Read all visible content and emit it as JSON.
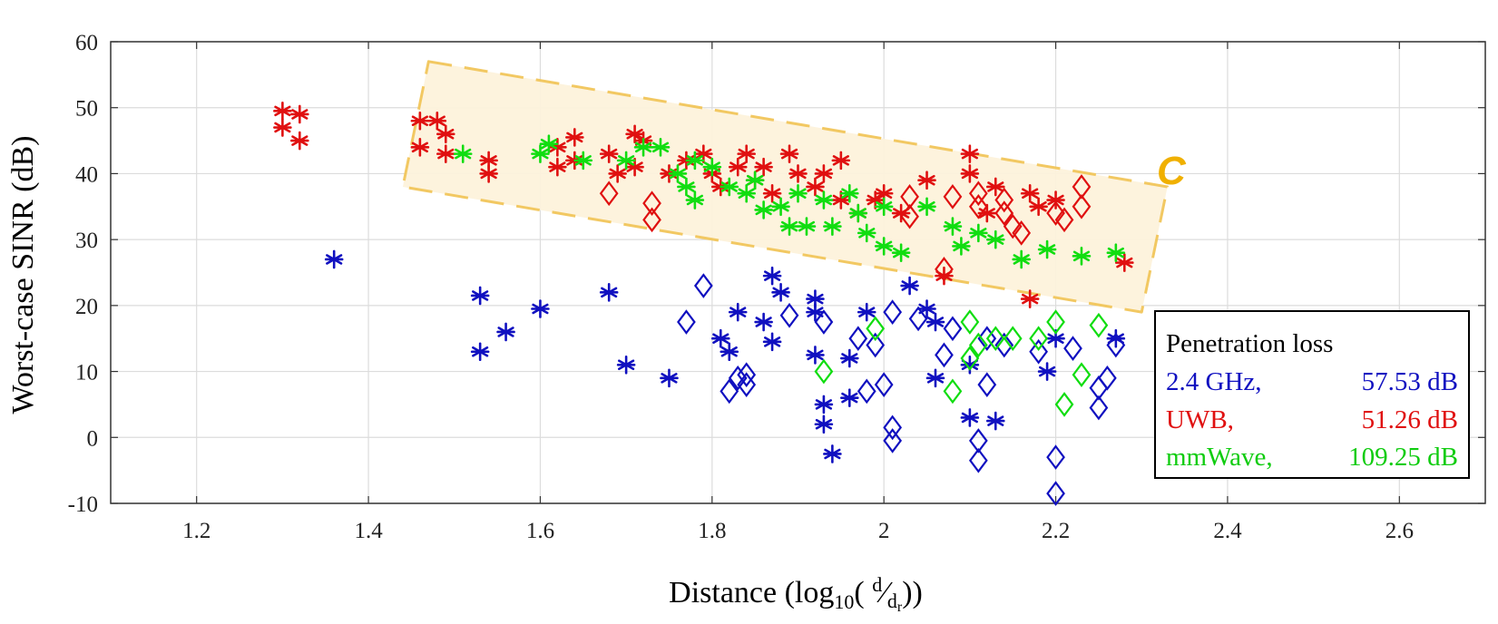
{
  "chart_data": {
    "type": "scatter",
    "xlabel": "Distance (log10( d/dr))",
    "xlabel_parts": {
      "prefix": "Distance (log",
      "sub": "10",
      "open": "( ",
      "num": "d",
      "den": "d",
      "den_sub": "r",
      "close": "))"
    },
    "ylabel": "Worst-case SINR (dB)",
    "xlim": [
      1.1,
      2.7
    ],
    "ylim": [
      -10,
      60
    ],
    "xticks": [
      1.2,
      1.4,
      1.6,
      1.8,
      2,
      2.2,
      2.4,
      2.6
    ],
    "xtick_labels": [
      "1.2",
      "1.4",
      "1.6",
      "1.8",
      "2",
      "2.2",
      "2.4",
      "2.6"
    ],
    "yticks": [
      -10,
      0,
      10,
      20,
      30,
      40,
      50,
      60
    ],
    "ytick_labels": [
      "-10",
      "0",
      "10",
      "20",
      "30",
      "40",
      "50",
      "60"
    ],
    "grid": true,
    "legend": {
      "placement": "bottom-right",
      "title": "Penetration loss",
      "entries": [
        {
          "label": "2.4 GHz,",
          "value": "57.53 dB",
          "color": "#1010c0"
        },
        {
          "label": "UWB,",
          "value": "51.26 dB",
          "color": "#e01010"
        },
        {
          "label": "mmWave,",
          "value": "109.25 dB",
          "color": "#10dd10"
        }
      ]
    },
    "region_annotation": {
      "label": "C",
      "fill": "#fdf3dc",
      "stroke": "#f2c65a",
      "corners_data": [
        [
          1.47,
          57
        ],
        [
          2.33,
          38
        ],
        [
          2.3,
          19
        ],
        [
          1.44,
          38
        ]
      ]
    },
    "series": [
      {
        "name": "2.4 GHz",
        "color": "#1010c0",
        "points": [
          {
            "x": 1.36,
            "y": 27,
            "m": "star"
          },
          {
            "x": 1.53,
            "y": 21.5,
            "m": "star"
          },
          {
            "x": 1.53,
            "y": 13,
            "m": "star"
          },
          {
            "x": 1.56,
            "y": 16,
            "m": "star"
          },
          {
            "x": 1.6,
            "y": 19.5,
            "m": "star"
          },
          {
            "x": 1.68,
            "y": 22,
            "m": "star"
          },
          {
            "x": 1.7,
            "y": 11,
            "m": "star"
          },
          {
            "x": 1.75,
            "y": 9,
            "m": "star"
          },
          {
            "x": 1.77,
            "y": 17.5,
            "m": "diamond"
          },
          {
            "x": 1.79,
            "y": 23,
            "m": "diamond"
          },
          {
            "x": 1.81,
            "y": 15,
            "m": "star"
          },
          {
            "x": 1.82,
            "y": 13,
            "m": "star"
          },
          {
            "x": 1.83,
            "y": 19,
            "m": "star"
          },
          {
            "x": 1.83,
            "y": 9,
            "m": "diamond"
          },
          {
            "x": 1.82,
            "y": 7,
            "m": "diamond"
          },
          {
            "x": 1.84,
            "y": 9.5,
            "m": "diamond"
          },
          {
            "x": 1.84,
            "y": 8,
            "m": "diamond"
          },
          {
            "x": 1.86,
            "y": 17.5,
            "m": "star"
          },
          {
            "x": 1.87,
            "y": 24.5,
            "m": "star"
          },
          {
            "x": 1.88,
            "y": 22,
            "m": "star"
          },
          {
            "x": 1.87,
            "y": 14.5,
            "m": "star"
          },
          {
            "x": 1.89,
            "y": 18.5,
            "m": "diamond"
          },
          {
            "x": 1.92,
            "y": 21,
            "m": "star"
          },
          {
            "x": 1.92,
            "y": 19,
            "m": "star"
          },
          {
            "x": 1.93,
            "y": 17.5,
            "m": "diamond"
          },
          {
            "x": 1.92,
            "y": 12.5,
            "m": "star"
          },
          {
            "x": 1.93,
            "y": 5,
            "m": "star"
          },
          {
            "x": 1.93,
            "y": 2,
            "m": "star"
          },
          {
            "x": 1.94,
            "y": -2.5,
            "m": "star"
          },
          {
            "x": 1.96,
            "y": 12,
            "m": "star"
          },
          {
            "x": 1.96,
            "y": 6,
            "m": "star"
          },
          {
            "x": 1.97,
            "y": 15,
            "m": "diamond"
          },
          {
            "x": 1.98,
            "y": 19,
            "m": "star"
          },
          {
            "x": 1.98,
            "y": 7,
            "m": "diamond"
          },
          {
            "x": 1.99,
            "y": 14,
            "m": "diamond"
          },
          {
            "x": 2,
            "y": 8,
            "m": "diamond"
          },
          {
            "x": 2.01,
            "y": 19,
            "m": "diamond"
          },
          {
            "x": 2.01,
            "y": 1.5,
            "m": "diamond"
          },
          {
            "x": 2.01,
            "y": -0.5,
            "m": "diamond"
          },
          {
            "x": 2.03,
            "y": 23,
            "m": "star"
          },
          {
            "x": 2.04,
            "y": 18,
            "m": "diamond"
          },
          {
            "x": 2.05,
            "y": 19.5,
            "m": "star"
          },
          {
            "x": 2.06,
            "y": 17.5,
            "m": "star"
          },
          {
            "x": 2.06,
            "y": 9,
            "m": "star"
          },
          {
            "x": 2.07,
            "y": 12.5,
            "m": "diamond"
          },
          {
            "x": 2.08,
            "y": 16.5,
            "m": "diamond"
          },
          {
            "x": 2.1,
            "y": 11,
            "m": "star"
          },
          {
            "x": 2.1,
            "y": 3,
            "m": "star"
          },
          {
            "x": 2.11,
            "y": -0.5,
            "m": "diamond"
          },
          {
            "x": 2.11,
            "y": -3.5,
            "m": "diamond"
          },
          {
            "x": 2.12,
            "y": 15,
            "m": "diamond"
          },
          {
            "x": 2.12,
            "y": 8,
            "m": "diamond"
          },
          {
            "x": 2.13,
            "y": 2.5,
            "m": "star"
          },
          {
            "x": 2.14,
            "y": 14,
            "m": "diamond"
          },
          {
            "x": 2.18,
            "y": 13,
            "m": "diamond"
          },
          {
            "x": 2.19,
            "y": 10,
            "m": "star"
          },
          {
            "x": 2.2,
            "y": 15,
            "m": "star"
          },
          {
            "x": 2.2,
            "y": -3,
            "m": "diamond"
          },
          {
            "x": 2.2,
            "y": -8.5,
            "m": "diamond"
          },
          {
            "x": 2.22,
            "y": 13.5,
            "m": "diamond"
          },
          {
            "x": 2.25,
            "y": 7.5,
            "m": "diamond"
          },
          {
            "x": 2.25,
            "y": 4.5,
            "m": "diamond"
          },
          {
            "x": 2.26,
            "y": 9,
            "m": "diamond"
          },
          {
            "x": 2.27,
            "y": 15,
            "m": "star"
          },
          {
            "x": 2.27,
            "y": 14,
            "m": "diamond"
          }
        ]
      },
      {
        "name": "UWB",
        "color": "#e01010",
        "points": [
          {
            "x": 1.3,
            "y": 49.5,
            "m": "star"
          },
          {
            "x": 1.32,
            "y": 49,
            "m": "star"
          },
          {
            "x": 1.3,
            "y": 47,
            "m": "star"
          },
          {
            "x": 1.32,
            "y": 45,
            "m": "star"
          },
          {
            "x": 1.46,
            "y": 48,
            "m": "star"
          },
          {
            "x": 1.48,
            "y": 48,
            "m": "star"
          },
          {
            "x": 1.49,
            "y": 46,
            "m": "star"
          },
          {
            "x": 1.46,
            "y": 44,
            "m": "star"
          },
          {
            "x": 1.49,
            "y": 43,
            "m": "star"
          },
          {
            "x": 1.54,
            "y": 42,
            "m": "star"
          },
          {
            "x": 1.54,
            "y": 40,
            "m": "star"
          },
          {
            "x": 1.62,
            "y": 44,
            "m": "star"
          },
          {
            "x": 1.64,
            "y": 45.5,
            "m": "star"
          },
          {
            "x": 1.62,
            "y": 41,
            "m": "star"
          },
          {
            "x": 1.64,
            "y": 42,
            "m": "star"
          },
          {
            "x": 1.68,
            "y": 43,
            "m": "star"
          },
          {
            "x": 1.68,
            "y": 37,
            "m": "diamond"
          },
          {
            "x": 1.69,
            "y": 40,
            "m": "star"
          },
          {
            "x": 1.71,
            "y": 46,
            "m": "star"
          },
          {
            "x": 1.72,
            "y": 45,
            "m": "star"
          },
          {
            "x": 1.71,
            "y": 41,
            "m": "star"
          },
          {
            "x": 1.73,
            "y": 35.5,
            "m": "diamond"
          },
          {
            "x": 1.73,
            "y": 33,
            "m": "diamond"
          },
          {
            "x": 1.75,
            "y": 40,
            "m": "star"
          },
          {
            "x": 1.77,
            "y": 42,
            "m": "star"
          },
          {
            "x": 1.79,
            "y": 43,
            "m": "star"
          },
          {
            "x": 1.8,
            "y": 40,
            "m": "star"
          },
          {
            "x": 1.81,
            "y": 38,
            "m": "star"
          },
          {
            "x": 1.83,
            "y": 41,
            "m": "star"
          },
          {
            "x": 1.84,
            "y": 43,
            "m": "star"
          },
          {
            "x": 1.85,
            "y": 39,
            "m": "star"
          },
          {
            "x": 1.86,
            "y": 41,
            "m": "star"
          },
          {
            "x": 1.87,
            "y": 37,
            "m": "star"
          },
          {
            "x": 1.89,
            "y": 43,
            "m": "star"
          },
          {
            "x": 1.9,
            "y": 40,
            "m": "star"
          },
          {
            "x": 1.92,
            "y": 38,
            "m": "star"
          },
          {
            "x": 1.93,
            "y": 40,
            "m": "star"
          },
          {
            "x": 1.95,
            "y": 42,
            "m": "star"
          },
          {
            "x": 1.95,
            "y": 36,
            "m": "star"
          },
          {
            "x": 1.97,
            "y": 34,
            "m": "star"
          },
          {
            "x": 1.99,
            "y": 36,
            "m": "star"
          },
          {
            "x": 2.0,
            "y": 37,
            "m": "star"
          },
          {
            "x": 2.02,
            "y": 34,
            "m": "star"
          },
          {
            "x": 2.03,
            "y": 36.5,
            "m": "diamond"
          },
          {
            "x": 2.03,
            "y": 33.5,
            "m": "diamond"
          },
          {
            "x": 2.05,
            "y": 39,
            "m": "star"
          },
          {
            "x": 2.07,
            "y": 25.5,
            "m": "diamond"
          },
          {
            "x": 2.07,
            "y": 24.5,
            "m": "star"
          },
          {
            "x": 2.08,
            "y": 36.5,
            "m": "diamond"
          },
          {
            "x": 2.1,
            "y": 43,
            "m": "star"
          },
          {
            "x": 2.1,
            "y": 40,
            "m": "star"
          },
          {
            "x": 2.11,
            "y": 37,
            "m": "diamond"
          },
          {
            "x": 2.11,
            "y": 35,
            "m": "diamond"
          },
          {
            "x": 2.12,
            "y": 34,
            "m": "star"
          },
          {
            "x": 2.13,
            "y": 38,
            "m": "star"
          },
          {
            "x": 2.14,
            "y": 36,
            "m": "diamond"
          },
          {
            "x": 2.14,
            "y": 34,
            "m": "diamond"
          },
          {
            "x": 2.15,
            "y": 32,
            "m": "diamond"
          },
          {
            "x": 2.16,
            "y": 31,
            "m": "diamond"
          },
          {
            "x": 2.17,
            "y": 37,
            "m": "star"
          },
          {
            "x": 2.18,
            "y": 35,
            "m": "star"
          },
          {
            "x": 2.2,
            "y": 36,
            "m": "star"
          },
          {
            "x": 2.2,
            "y": 34,
            "m": "diamond"
          },
          {
            "x": 2.21,
            "y": 33,
            "m": "diamond"
          },
          {
            "x": 2.23,
            "y": 38,
            "m": "diamond"
          },
          {
            "x": 2.23,
            "y": 35,
            "m": "diamond"
          },
          {
            "x": 2.28,
            "y": 26.5,
            "m": "star"
          },
          {
            "x": 2.17,
            "y": 21,
            "m": "star"
          }
        ]
      },
      {
        "name": "mmWave",
        "color": "#10dd10",
        "points": [
          {
            "x": 1.51,
            "y": 43,
            "m": "star"
          },
          {
            "x": 1.6,
            "y": 43,
            "m": "star"
          },
          {
            "x": 1.61,
            "y": 44.5,
            "m": "star"
          },
          {
            "x": 1.65,
            "y": 42,
            "m": "star"
          },
          {
            "x": 1.7,
            "y": 42,
            "m": "star"
          },
          {
            "x": 1.72,
            "y": 44,
            "m": "star"
          },
          {
            "x": 1.74,
            "y": 44,
            "m": "star"
          },
          {
            "x": 1.76,
            "y": 40,
            "m": "star"
          },
          {
            "x": 1.77,
            "y": 38,
            "m": "star"
          },
          {
            "x": 1.78,
            "y": 42,
            "m": "star"
          },
          {
            "x": 1.78,
            "y": 36,
            "m": "star"
          },
          {
            "x": 1.8,
            "y": 41,
            "m": "star"
          },
          {
            "x": 1.82,
            "y": 38,
            "m": "star"
          },
          {
            "x": 1.84,
            "y": 37,
            "m": "star"
          },
          {
            "x": 1.85,
            "y": 39,
            "m": "star"
          },
          {
            "x": 1.86,
            "y": 34.5,
            "m": "star"
          },
          {
            "x": 1.88,
            "y": 35,
            "m": "star"
          },
          {
            "x": 1.9,
            "y": 37,
            "m": "star"
          },
          {
            "x": 1.89,
            "y": 32,
            "m": "star"
          },
          {
            "x": 1.91,
            "y": 32,
            "m": "star"
          },
          {
            "x": 1.93,
            "y": 36,
            "m": "star"
          },
          {
            "x": 1.94,
            "y": 32,
            "m": "star"
          },
          {
            "x": 1.96,
            "y": 37,
            "m": "star"
          },
          {
            "x": 1.97,
            "y": 34,
            "m": "star"
          },
          {
            "x": 1.98,
            "y": 31,
            "m": "star"
          },
          {
            "x": 2.0,
            "y": 35,
            "m": "star"
          },
          {
            "x": 2.0,
            "y": 29,
            "m": "star"
          },
          {
            "x": 2.02,
            "y": 28,
            "m": "star"
          },
          {
            "x": 2.05,
            "y": 35,
            "m": "star"
          },
          {
            "x": 2.08,
            "y": 32,
            "m": "star"
          },
          {
            "x": 2.09,
            "y": 29,
            "m": "star"
          },
          {
            "x": 2.11,
            "y": 31,
            "m": "star"
          },
          {
            "x": 2.13,
            "y": 30,
            "m": "star"
          },
          {
            "x": 2.16,
            "y": 27,
            "m": "star"
          },
          {
            "x": 2.19,
            "y": 28.5,
            "m": "star"
          },
          {
            "x": 2.23,
            "y": 27.5,
            "m": "star"
          },
          {
            "x": 2.27,
            "y": 28,
            "m": "star"
          },
          {
            "x": 1.93,
            "y": 10,
            "m": "diamond"
          },
          {
            "x": 1.99,
            "y": 16.5,
            "m": "diamond"
          },
          {
            "x": 2.08,
            "y": 7,
            "m": "diamond"
          },
          {
            "x": 2.1,
            "y": 17.5,
            "m": "diamond"
          },
          {
            "x": 2.1,
            "y": 12,
            "m": "diamond"
          },
          {
            "x": 2.11,
            "y": 14,
            "m": "diamond"
          },
          {
            "x": 2.13,
            "y": 15,
            "m": "diamond"
          },
          {
            "x": 2.15,
            "y": 15,
            "m": "diamond"
          },
          {
            "x": 2.18,
            "y": 15,
            "m": "diamond"
          },
          {
            "x": 2.2,
            "y": 17.5,
            "m": "diamond"
          },
          {
            "x": 2.21,
            "y": 5,
            "m": "diamond"
          },
          {
            "x": 2.23,
            "y": 9.5,
            "m": "diamond"
          },
          {
            "x": 2.25,
            "y": 17,
            "m": "diamond"
          }
        ]
      }
    ]
  }
}
